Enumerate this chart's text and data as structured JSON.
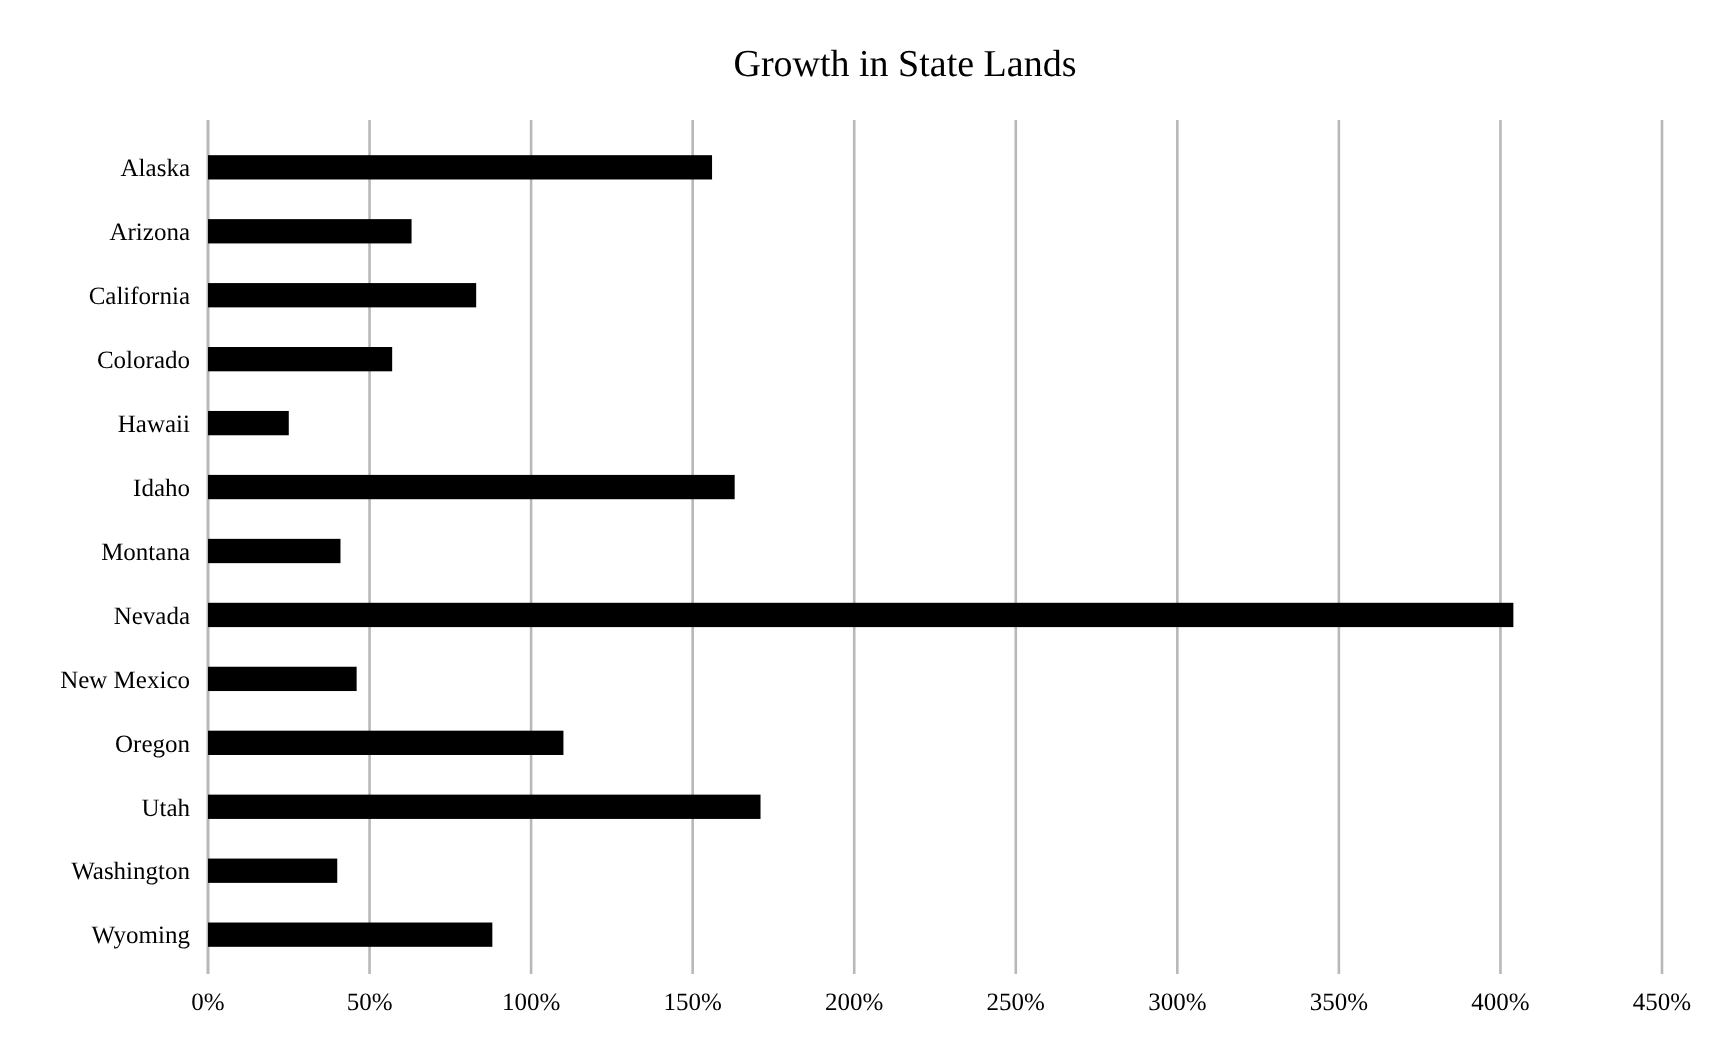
{
  "chart_data": {
    "type": "bar",
    "orientation": "horizontal",
    "title": "Growth in State Lands",
    "categories": [
      "Alaska",
      "Arizona",
      "California",
      "Colorado",
      "Hawaii",
      "Idaho",
      "Montana",
      "Nevada",
      "New Mexico",
      "Oregon",
      "Utah",
      "Washington",
      "Wyoming"
    ],
    "values": [
      156,
      63,
      83,
      57,
      25,
      163,
      41,
      404,
      46,
      110,
      171,
      40,
      88
    ],
    "color": "#000000",
    "xlim": [
      0,
      450
    ],
    "xticks": [
      {
        "value": 0,
        "label": "0%"
      },
      {
        "value": 50,
        "label": "50%"
      },
      {
        "value": 100,
        "label": "100%"
      },
      {
        "value": 150,
        "label": "150%"
      },
      {
        "value": 200,
        "label": "200%"
      },
      {
        "value": 250,
        "label": "250%"
      },
      {
        "value": 300,
        "label": "300%"
      },
      {
        "value": 350,
        "label": "350%"
      },
      {
        "value": 400,
        "label": "400%"
      },
      {
        "value": 450,
        "label": "450%"
      }
    ],
    "grid": "x"
  }
}
